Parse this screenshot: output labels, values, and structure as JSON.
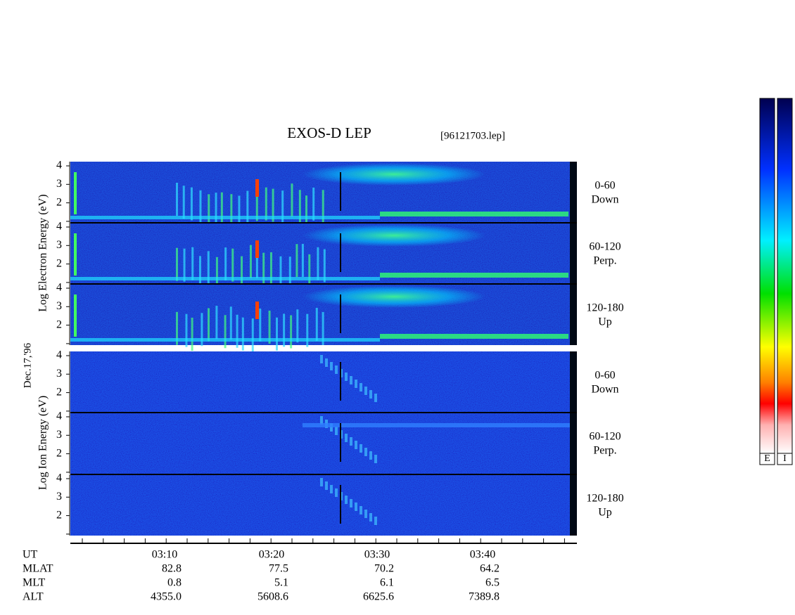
{
  "header": {
    "title": "EXOS-D LEP",
    "file": "[96121703.lep]"
  },
  "date": "Dec.17,'96",
  "groups": [
    {
      "label": "Log Electron Energy (eV)",
      "panels": [
        {
          "range": "0-60",
          "direction": "Down"
        },
        {
          "range": "60-120",
          "direction": "Perp."
        },
        {
          "range": "120-180",
          "direction": "Up"
        }
      ]
    },
    {
      "label": "Log Ion Energy (eV)",
      "panels": [
        {
          "range": "0-60",
          "direction": "Down"
        },
        {
          "range": "60-120",
          "direction": "Perp."
        },
        {
          "range": "120-180",
          "direction": "Up"
        }
      ]
    }
  ],
  "energy_ticks": [
    2,
    3,
    4
  ],
  "ephemeris": {
    "labels": [
      "UT",
      "MLAT",
      "MLT",
      "ALT"
    ],
    "rows": [
      [
        "03:10",
        "03:20",
        "03:30",
        "03:40"
      ],
      [
        "82.8",
        "77.5",
        "70.2",
        "64.2"
      ],
      [
        "0.8",
        "5.1",
        "6.1",
        "6.5"
      ],
      [
        "4355.0",
        "5608.6",
        "6625.6",
        "7389.8"
      ]
    ]
  },
  "colorbars": [
    "E",
    "I"
  ]
}
